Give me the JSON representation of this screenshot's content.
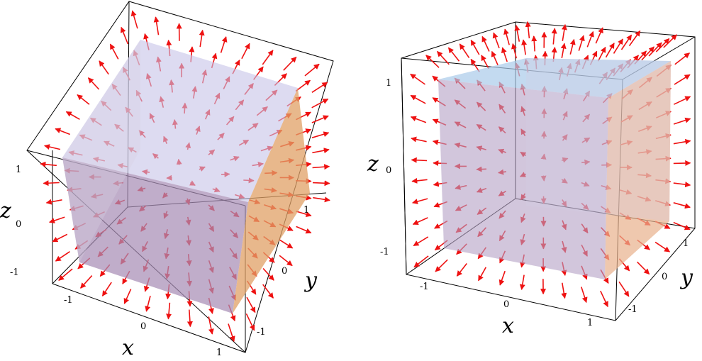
{
  "plots": [
    {
      "id": "left",
      "tick_labels": {
        "x": [
          "-1",
          "0",
          "1"
        ],
        "y": [
          "-1",
          "0",
          "1"
        ],
        "z": [
          "-1",
          "0",
          "1"
        ]
      },
      "axis_labels": {
        "x": "x",
        "y": "y",
        "z": "z"
      },
      "field": "radial vector field",
      "arrow_color": "#ee1111",
      "cube_colors": {
        "front": "#a88eb6",
        "top": "#c7c3e8",
        "side": "#e0a066"
      }
    },
    {
      "id": "right",
      "tick_labels": {
        "x": [
          "-1",
          "0",
          "1"
        ],
        "y": [
          "-1",
          "0",
          "1"
        ],
        "z": [
          "-1",
          "0",
          "1"
        ]
      },
      "axis_labels": {
        "x": "x",
        "y": "y",
        "z": "z"
      },
      "field": "radial vector field",
      "arrow_color": "#ee1111",
      "cube_colors": {
        "front": "#b4a0c4",
        "top": "#a9cbea",
        "side": "#e8b08c"
      }
    }
  ]
}
